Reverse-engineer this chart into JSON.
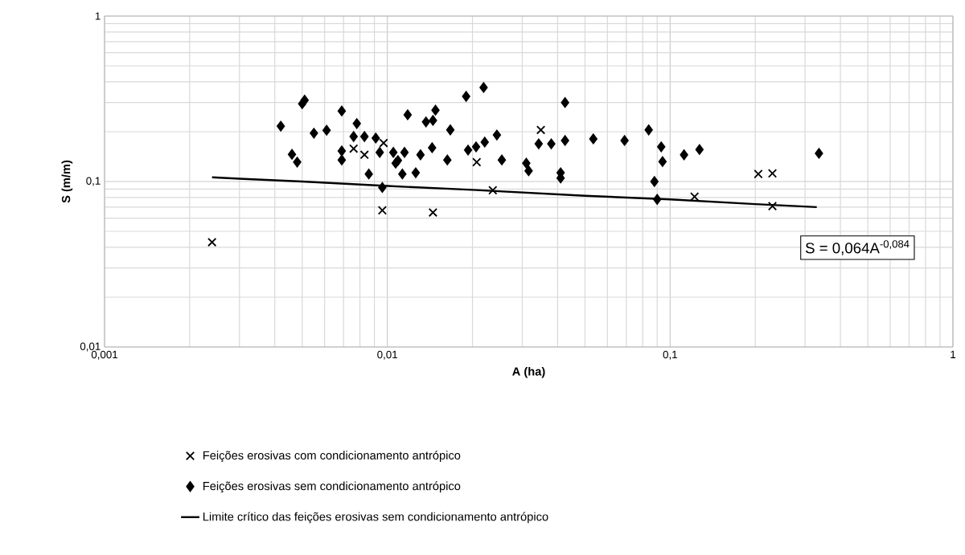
{
  "chart_data": {
    "type": "scatter",
    "xlabel": "A (ha)",
    "ylabel": "S (m/m)",
    "log": "xy",
    "grid": true,
    "legend": "bottom",
    "xlim": [
      0.001,
      1
    ],
    "ylim": [
      0.01,
      1
    ],
    "xticks": [
      {
        "value": 0.001,
        "label": "0,001"
      },
      {
        "value": 0.01,
        "label": "0,01"
      },
      {
        "value": 0.1,
        "label": "0,1"
      },
      {
        "value": 1,
        "label": "1"
      }
    ],
    "yticks": [
      {
        "value": 0.01,
        "label": "0,01"
      },
      {
        "value": 0.1,
        "label": "0,1"
      },
      {
        "value": 1,
        "label": "1"
      }
    ],
    "annotations": [
      "S = 0,064A$^{-0,084}$"
    ],
    "series": [
      {
        "name": "Feições erosivas com condicionamento antrópico",
        "marker": "cross",
        "color": "#000000",
        "x": [
          0.0024,
          0.0076,
          0.0083,
          0.0097,
          0.0096,
          0.0207,
          0.0145,
          0.0236,
          0.0349,
          0.205,
          0.23,
          0.122,
          0.23
        ],
        "values": [
          0.043,
          0.158,
          0.145,
          0.171,
          0.067,
          0.131,
          0.065,
          0.0885,
          0.205,
          0.111,
          0.112,
          0.081,
          0.071
        ]
      },
      {
        "name": "Feições erosivas sem condicionamento antrópico",
        "marker": "diamond",
        "color": "#000000",
        "x": [
          0.0042,
          0.0051,
          0.005,
          0.0046,
          0.0048,
          0.0055,
          0.0061,
          0.0069,
          0.0078,
          0.0076,
          0.0083,
          0.0091,
          0.0069,
          0.0069,
          0.0094,
          0.0086,
          0.0096,
          0.0107,
          0.0118,
          0.0137,
          0.0148,
          0.0145,
          0.0167,
          0.019,
          0.0219,
          0.0105,
          0.0115,
          0.0109,
          0.0113,
          0.0126,
          0.0131,
          0.0144,
          0.0163,
          0.0193,
          0.0206,
          0.0221,
          0.0244,
          0.0254,
          0.031,
          0.0316,
          0.0343,
          0.038,
          0.0425,
          0.0425,
          0.041,
          0.041,
          0.0535,
          0.069,
          0.084,
          0.093,
          0.094,
          0.088,
          0.09,
          0.112,
          0.127,
          0.336
        ],
        "values": [
          0.216,
          0.31,
          0.295,
          0.146,
          0.131,
          0.196,
          0.204,
          0.267,
          0.224,
          0.187,
          0.187,
          0.183,
          0.153,
          0.135,
          0.15,
          0.111,
          0.092,
          0.129,
          0.253,
          0.229,
          0.27,
          0.234,
          0.205,
          0.327,
          0.37,
          0.15,
          0.15,
          0.134,
          0.111,
          0.113,
          0.145,
          0.16,
          0.135,
          0.155,
          0.162,
          0.173,
          0.191,
          0.135,
          0.129,
          0.116,
          0.169,
          0.169,
          0.3,
          0.177,
          0.113,
          0.105,
          0.181,
          0.177,
          0.205,
          0.162,
          0.132,
          0.1,
          0.078,
          0.145,
          0.156,
          0.148
        ]
      },
      {
        "name": "Limite crítico das feições erosivas sem condicionamento antrópico",
        "type": "line",
        "marker": "none",
        "line_style": "solid",
        "color": "#000000",
        "x": [
          0.0024,
          0.003,
          0.005,
          0.01,
          0.02,
          0.05,
          0.1,
          0.2,
          0.33
        ],
        "values": [
          0.106,
          0.104,
          0.1,
          0.094,
          0.089,
          0.082,
          0.078,
          0.073,
          0.07
        ]
      }
    ]
  }
}
